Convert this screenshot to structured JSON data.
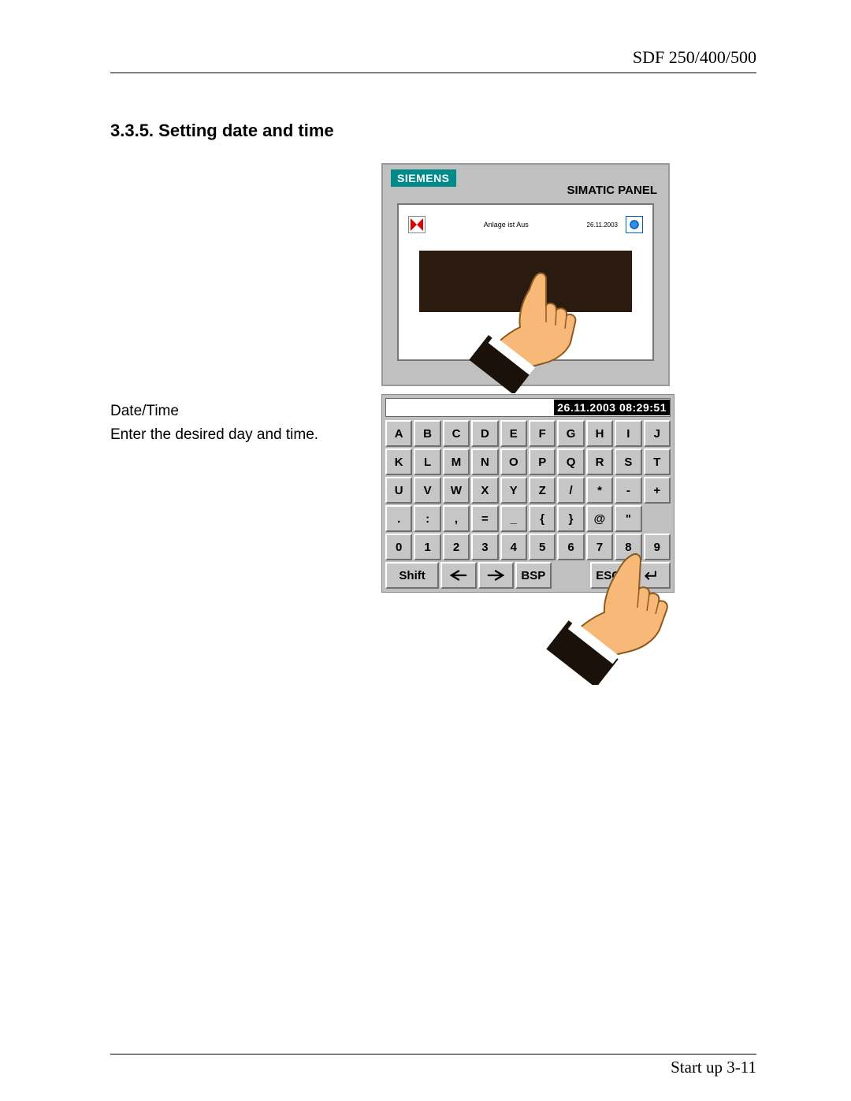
{
  "header": {
    "doc_title": "SDF 250/400/500"
  },
  "section": {
    "number": "3.3.5.",
    "title": "Setting date and time"
  },
  "left": {
    "label": "Date/Time",
    "instruction": "Enter the desired day and time."
  },
  "panel": {
    "brand": "SIEMENS",
    "product": "SIMATIC PANEL",
    "status_text": "Anlage ist Aus",
    "status_date": "26.11.2003",
    "colors": {
      "bezel": "#c0c0c0",
      "brand_bg": "#008b8b",
      "dark_rect": "#2a1a10"
    }
  },
  "keyboard": {
    "display_value": "26.11.2003 08:29:51",
    "rows": [
      [
        "A",
        "B",
        "C",
        "D",
        "E",
        "F",
        "G",
        "H",
        "I",
        "J"
      ],
      [
        "K",
        "L",
        "M",
        "N",
        "O",
        "P",
        "Q",
        "R",
        "S",
        "T"
      ],
      [
        "U",
        "V",
        "W",
        "X",
        "Y",
        "Z",
        "/",
        "*",
        "-",
        "+"
      ],
      [
        ".",
        ":",
        ",",
        "=",
        "_",
        "{",
        "}",
        "@",
        "\"",
        ""
      ],
      [
        "0",
        "1",
        "2",
        "3",
        "4",
        "5",
        "6",
        "7",
        "8",
        "9"
      ]
    ],
    "fn_row": {
      "shift": "Shift",
      "left": "←",
      "right": "→",
      "bsp": "BSP",
      "esc": "ESC",
      "enter": "↵"
    },
    "colors": {
      "key_face": "#c6c6c6",
      "key_light": "#ffffff",
      "key_dark": "#707070",
      "display_bg": "#000000",
      "display_fg": "#ffffff"
    }
  },
  "hand": {
    "skin": "#f8b878",
    "cuff": "#1a120a"
  },
  "footer": {
    "text": "Start up 3-11"
  }
}
